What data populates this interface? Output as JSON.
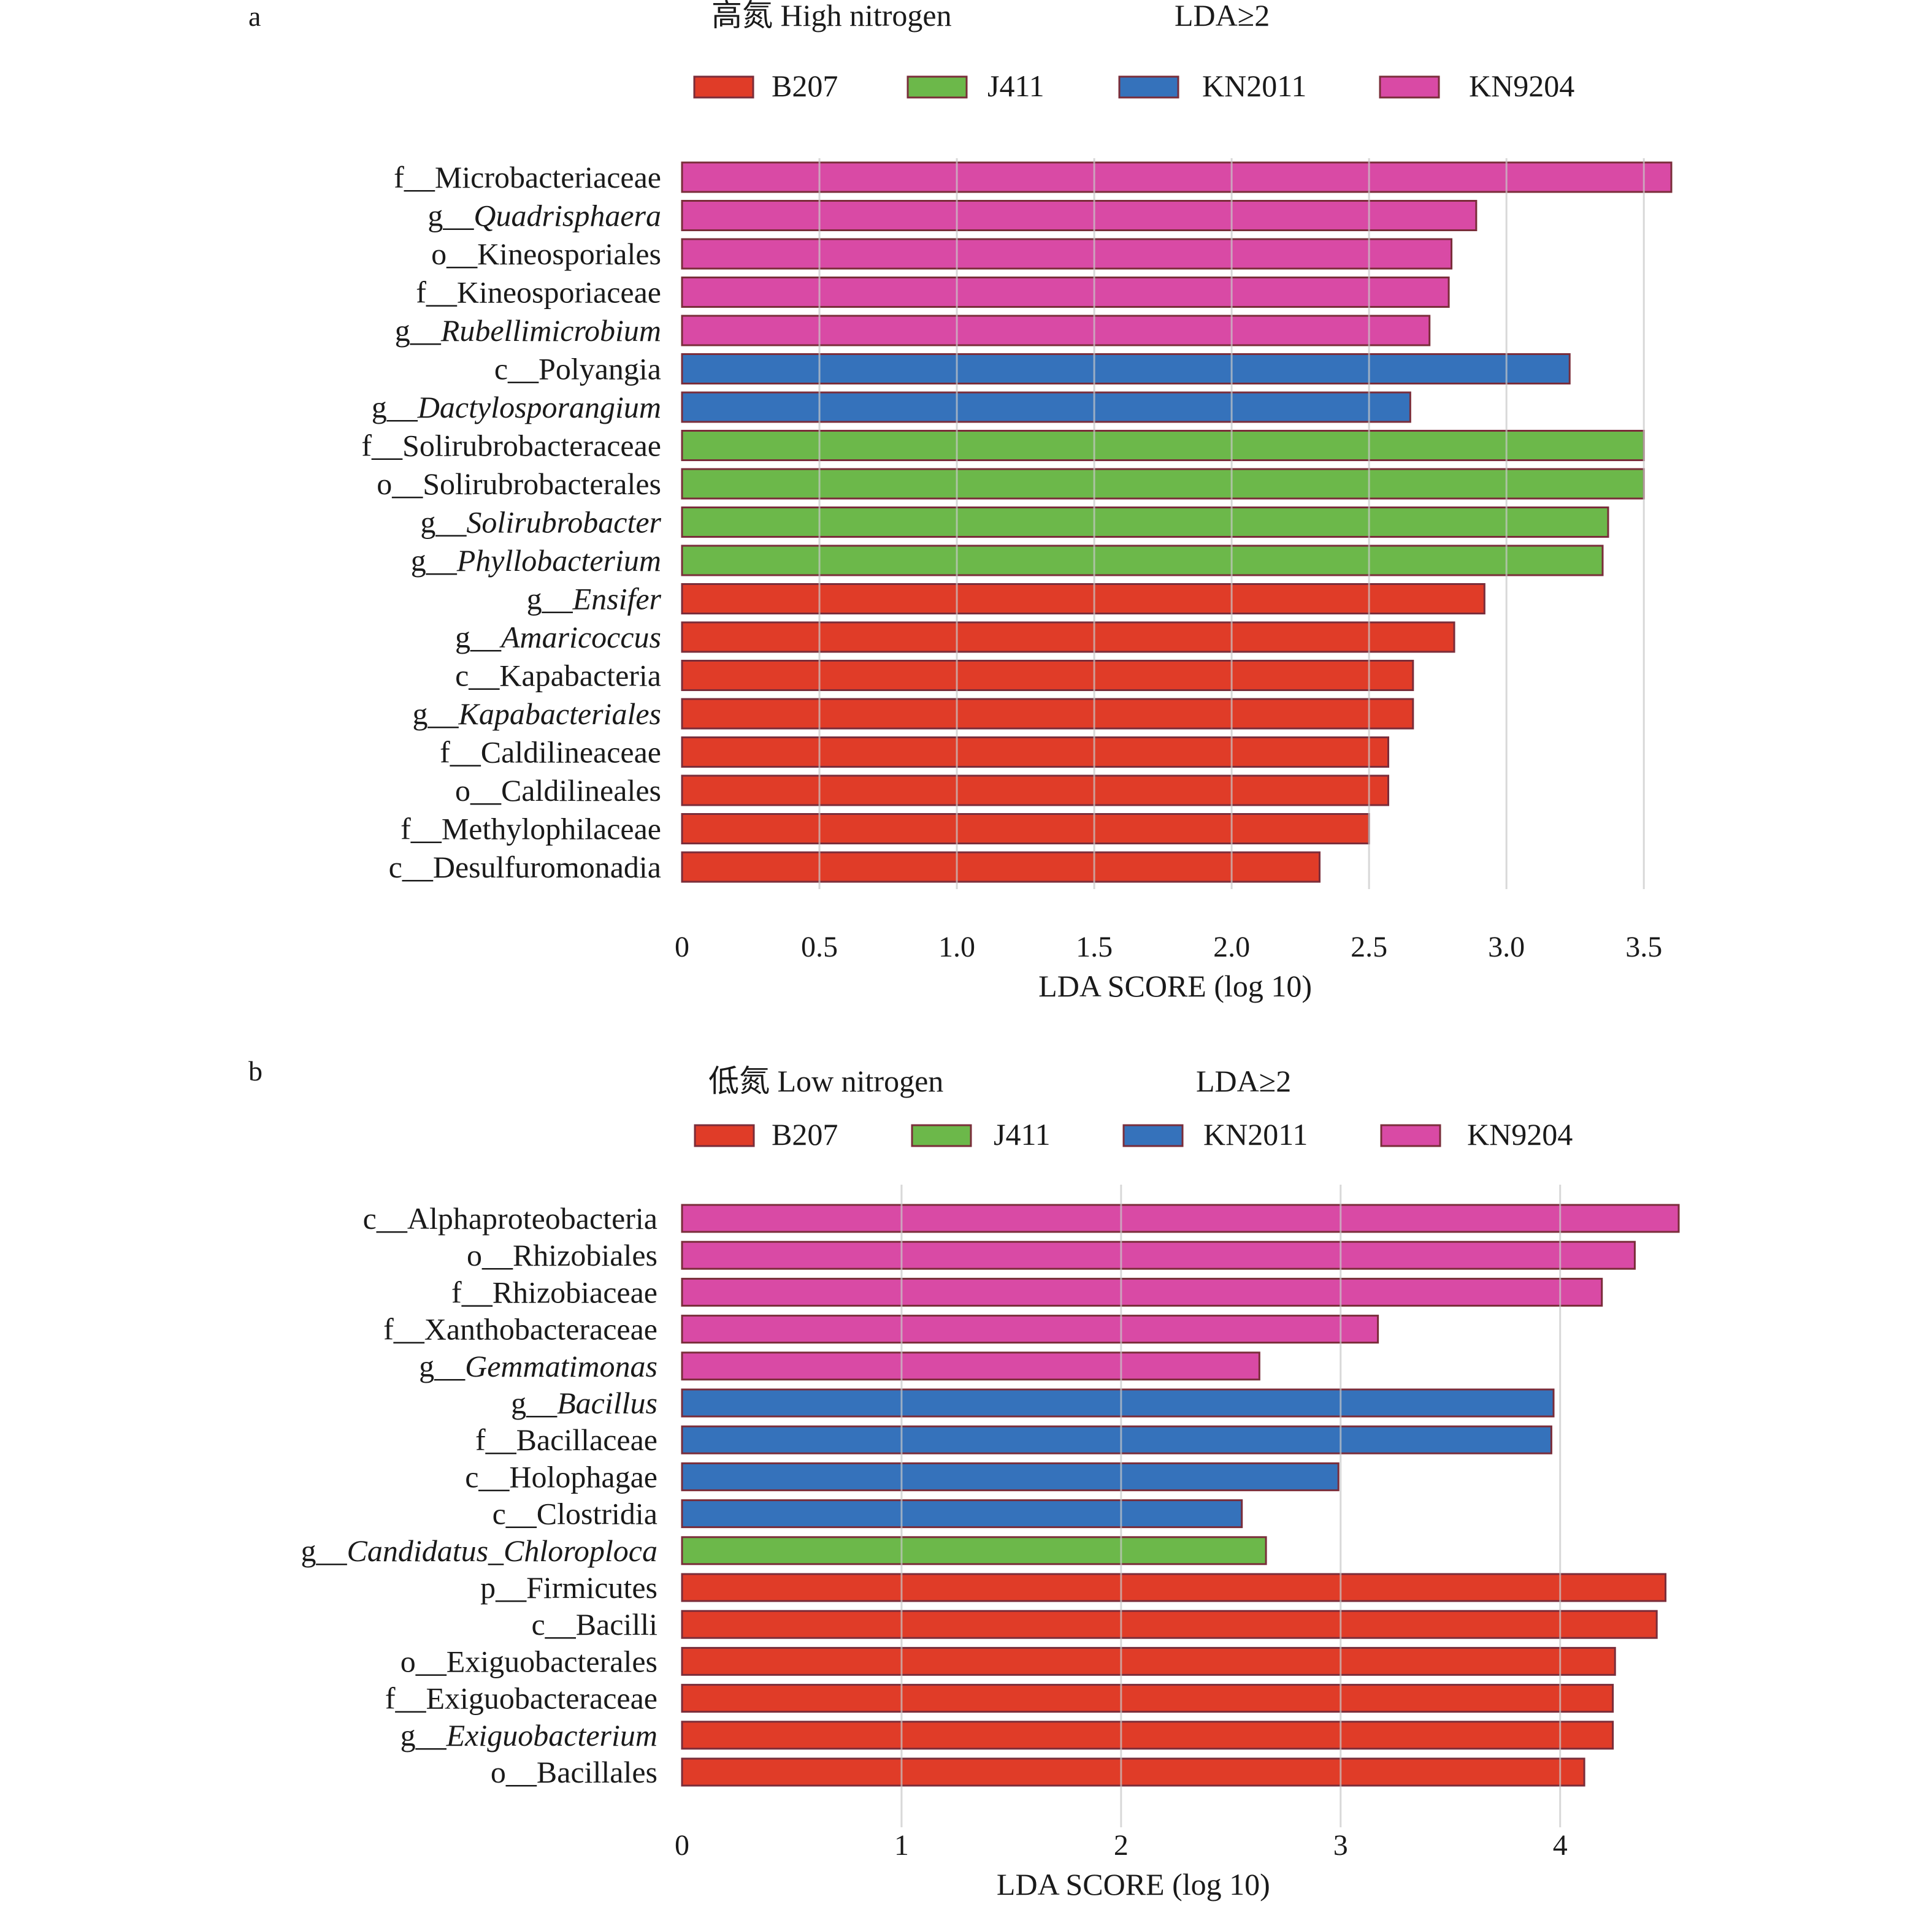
{
  "colors": {
    "B207": "#e03c28",
    "J411": "#6cb84a",
    "KN2011": "#3572bb",
    "KN9204": "#d94aa5",
    "bar_edge": "#7a2d3a",
    "grid": "#c8c8c8"
  },
  "legend": [
    {
      "label": "B207",
      "color_key": "B207"
    },
    {
      "label": "J411",
      "color_key": "J411"
    },
    {
      "label": "KN2011",
      "color_key": "KN2011"
    },
    {
      "label": "KN9204",
      "color_key": "KN9204"
    }
  ],
  "chart_data": [
    {
      "type": "bar",
      "orientation": "horizontal",
      "panel_letter": "a",
      "title": "高氮 High nitrogen",
      "subtitle": "LDA≥2",
      "xlabel": "LDA SCORE (log 10)",
      "xlim": [
        0,
        3.6
      ],
      "xticks": [
        {
          "v": 0,
          "label": "0"
        },
        {
          "v": 0.5,
          "label": "0.5"
        },
        {
          "v": 1.0,
          "label": "1.0"
        },
        {
          "v": 1.5,
          "label": "1.5"
        },
        {
          "v": 2.0,
          "label": "2.0"
        },
        {
          "v": 2.5,
          "label": "2.5"
        },
        {
          "v": 3.0,
          "label": "3.0"
        },
        {
          "v": 3.5,
          "label": "3.5"
        }
      ],
      "grid": true,
      "bars": [
        {
          "prefix": "f__",
          "name": "Microbacteriaceae",
          "italic": false,
          "value": 3.6,
          "group": "KN9204"
        },
        {
          "prefix": "g__",
          "name": "Quadrisphaera",
          "italic": true,
          "value": 2.89,
          "group": "KN9204"
        },
        {
          "prefix": "o__",
          "name": "Kineosporiales",
          "italic": false,
          "value": 2.8,
          "group": "KN9204"
        },
        {
          "prefix": "f__",
          "name": "Kineosporiaceae",
          "italic": false,
          "value": 2.79,
          "group": "KN9204"
        },
        {
          "prefix": "g__",
          "name": "Rubellimicrobium",
          "italic": true,
          "value": 2.72,
          "group": "KN9204"
        },
        {
          "prefix": "c__",
          "name": "Polyangia",
          "italic": false,
          "value": 3.23,
          "group": "KN2011"
        },
        {
          "prefix": "g__",
          "name": "Dactylosporangium",
          "italic": true,
          "value": 2.65,
          "group": "KN2011"
        },
        {
          "prefix": "f__",
          "name": "Solirubrobacteraceae",
          "italic": false,
          "value": 3.5,
          "group": "J411"
        },
        {
          "prefix": "o__",
          "name": "Solirubrobacterales",
          "italic": false,
          "value": 3.5,
          "group": "J411"
        },
        {
          "prefix": "g__",
          "name": "Solirubrobacter",
          "italic": true,
          "value": 3.37,
          "group": "J411"
        },
        {
          "prefix": "g__",
          "name": "Phyllobacterium",
          "italic": true,
          "value": 3.35,
          "group": "J411"
        },
        {
          "prefix": "g__",
          "name": "Ensifer",
          "italic": true,
          "value": 2.92,
          "group": "B207"
        },
        {
          "prefix": "g__",
          "name": "Amaricoccus",
          "italic": true,
          "value": 2.81,
          "group": "B207"
        },
        {
          "prefix": "c__",
          "name": "Kapabacteria",
          "italic": false,
          "value": 2.66,
          "group": "B207"
        },
        {
          "prefix": "g__",
          "name": "Kapabacteriales",
          "italic": true,
          "value": 2.66,
          "group": "B207"
        },
        {
          "prefix": "f__",
          "name": "Caldilineaceae",
          "italic": false,
          "value": 2.57,
          "group": "B207"
        },
        {
          "prefix": "o__",
          "name": "Caldilineales",
          "italic": false,
          "value": 2.57,
          "group": "B207"
        },
        {
          "prefix": "f__",
          "name": "Methylophilaceae",
          "italic": false,
          "value": 2.5,
          "group": "B207"
        },
        {
          "prefix": "c__",
          "name": "Desulfuromonadia",
          "italic": false,
          "value": 2.32,
          "group": "B207"
        }
      ]
    },
    {
      "type": "bar",
      "orientation": "horizontal",
      "panel_letter": "b",
      "title": "低氮 Low nitrogen",
      "subtitle": "LDA≥2",
      "xlabel": "LDA SCORE (log 10)",
      "xlim": [
        0,
        4.54
      ],
      "xticks": [
        {
          "v": 0,
          "label": "0"
        },
        {
          "v": 1,
          "label": "1"
        },
        {
          "v": 2,
          "label": "2"
        },
        {
          "v": 3,
          "label": "3"
        },
        {
          "v": 4,
          "label": "4"
        }
      ],
      "grid": true,
      "bars": [
        {
          "prefix": "c__",
          "name": "Alphaproteobacteria",
          "italic": false,
          "value": 4.54,
          "group": "KN9204"
        },
        {
          "prefix": "o__",
          "name": "Rhizobiales",
          "italic": false,
          "value": 4.34,
          "group": "KN9204"
        },
        {
          "prefix": "f__",
          "name": "Rhizobiaceae",
          "italic": false,
          "value": 4.19,
          "group": "KN9204"
        },
        {
          "prefix": "f__",
          "name": "Xanthobacteraceae",
          "italic": false,
          "value": 3.17,
          "group": "KN9204"
        },
        {
          "prefix": "g__",
          "name": "Gemmatimonas",
          "italic": true,
          "value": 2.63,
          "group": "KN9204"
        },
        {
          "prefix": "g__",
          "name": "Bacillus",
          "italic": true,
          "value": 3.97,
          "group": "KN2011"
        },
        {
          "prefix": "f__",
          "name": "Bacillaceae",
          "italic": false,
          "value": 3.96,
          "group": "KN2011"
        },
        {
          "prefix": "c__",
          "name": "Holophagae",
          "italic": false,
          "value": 2.99,
          "group": "KN2011"
        },
        {
          "prefix": "c__",
          "name": "Clostridia",
          "italic": false,
          "value": 2.55,
          "group": "KN2011"
        },
        {
          "prefix": "g__",
          "name": "Candidatus_Chloroploca",
          "italic": true,
          "value": 2.66,
          "group": "J411"
        },
        {
          "prefix": "p__",
          "name": "Firmicutes",
          "italic": false,
          "value": 4.48,
          "group": "B207"
        },
        {
          "prefix": "c__",
          "name": "Bacilli",
          "italic": false,
          "value": 4.44,
          "group": "B207"
        },
        {
          "prefix": "o__",
          "name": "Exiguobacterales",
          "italic": false,
          "value": 4.25,
          "group": "B207"
        },
        {
          "prefix": "f__",
          "name": "Exiguobacteraceae",
          "italic": false,
          "value": 4.24,
          "group": "B207"
        },
        {
          "prefix": "g__",
          "name": "Exiguobacterium",
          "italic": true,
          "value": 4.24,
          "group": "B207"
        },
        {
          "prefix": "o__",
          "name": "Bacillales",
          "italic": false,
          "value": 4.11,
          "group": "B207"
        }
      ]
    }
  ]
}
